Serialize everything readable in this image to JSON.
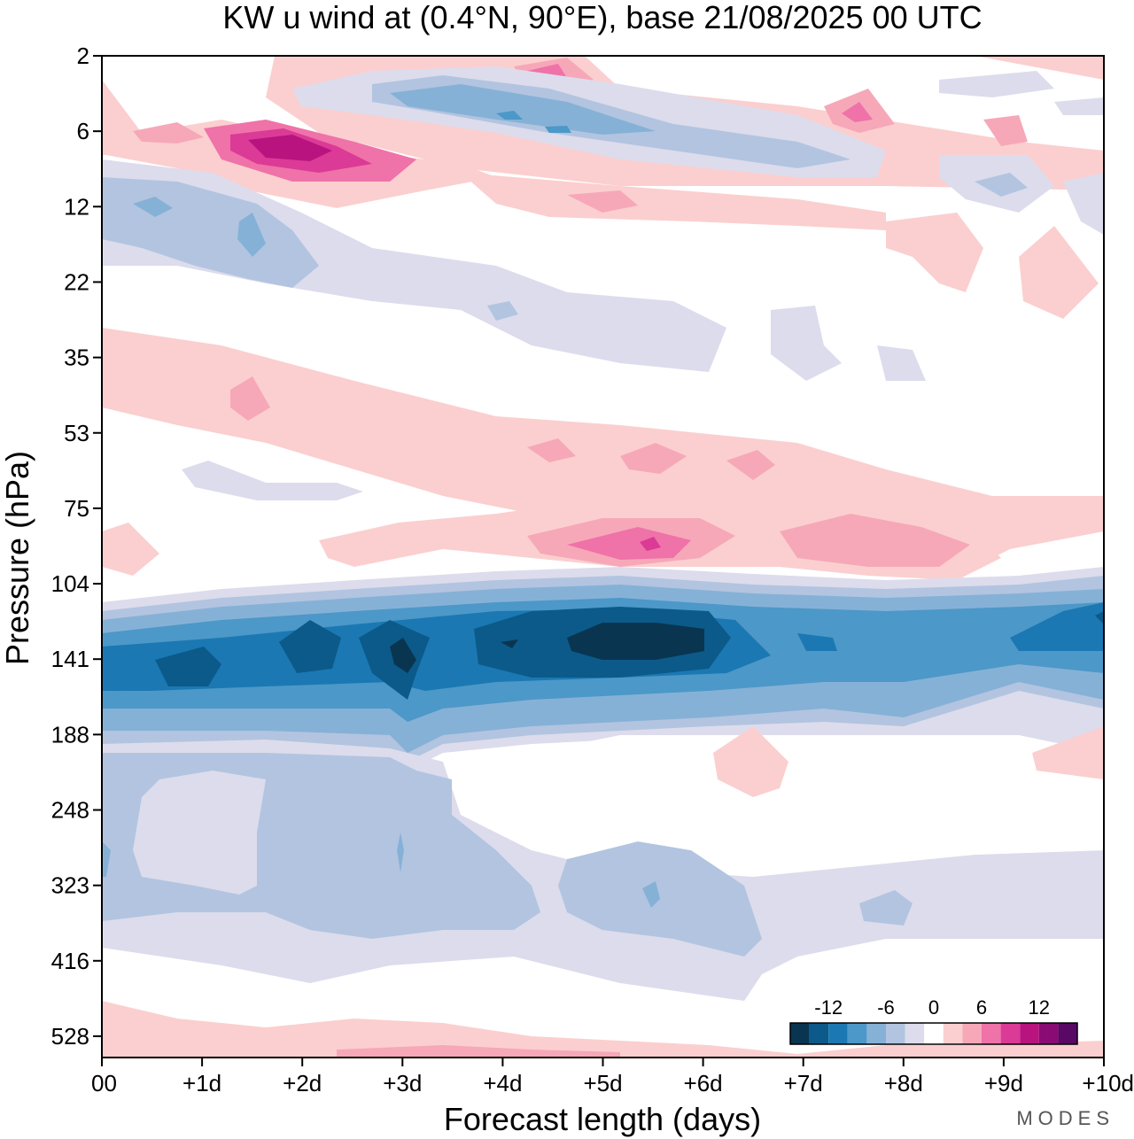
{
  "chart_data": {
    "type": "heatmap",
    "title": "KW u wind at (0.4°N, 90°E),  base 21/08/2025  00 UTC",
    "xlabel": "Forecast length (days)",
    "ylabel": "Pressure (hPa)",
    "x_ticks": [
      "00",
      "+1d",
      "+2d",
      "+3d",
      "+4d",
      "+5d",
      "+6d",
      "+7d",
      "+8d",
      "+9d",
      "+10d"
    ],
    "y_ticks": [
      "2",
      "6",
      "12",
      "22",
      "35",
      "53",
      "75",
      "104",
      "141",
      "188",
      "248",
      "323",
      "416",
      "528"
    ],
    "xlim_days": [
      0,
      10
    ],
    "colorbar": {
      "labels": [
        "-12",
        "-6",
        "0",
        "6",
        "12"
      ],
      "colors": [
        "#0a3550",
        "#0b5a8a",
        "#1b78b2",
        "#4c98c8",
        "#86b1d6",
        "#b2c4e0",
        "#dcdcec",
        "#ffffff",
        "#fbcfcf",
        "#f6a8b8",
        "#ef72a8",
        "#db3a96",
        "#b9137f",
        "#8a0b74",
        "#5a0866"
      ]
    },
    "features": [
      {
        "level_hPa": 7,
        "days": [
          1.3,
          2.9
        ],
        "value": 12,
        "sign": "easterly-positive"
      },
      {
        "level_hPa": 141,
        "days": [
          4.5,
          6.2
        ],
        "value": -14,
        "sign": "negative"
      },
      {
        "level_hPa": 141,
        "days": [
          0,
          10
        ],
        "value": -10,
        "sign": "negative"
      },
      {
        "level_hPa": 88,
        "days": [
          4.3,
          6.3
        ],
        "value": 8,
        "sign": "positive"
      },
      {
        "level_hPa": 300,
        "days": [
          0,
          9.5
        ],
        "value": -4,
        "sign": "negative"
      }
    ]
  },
  "branding": "MODES"
}
